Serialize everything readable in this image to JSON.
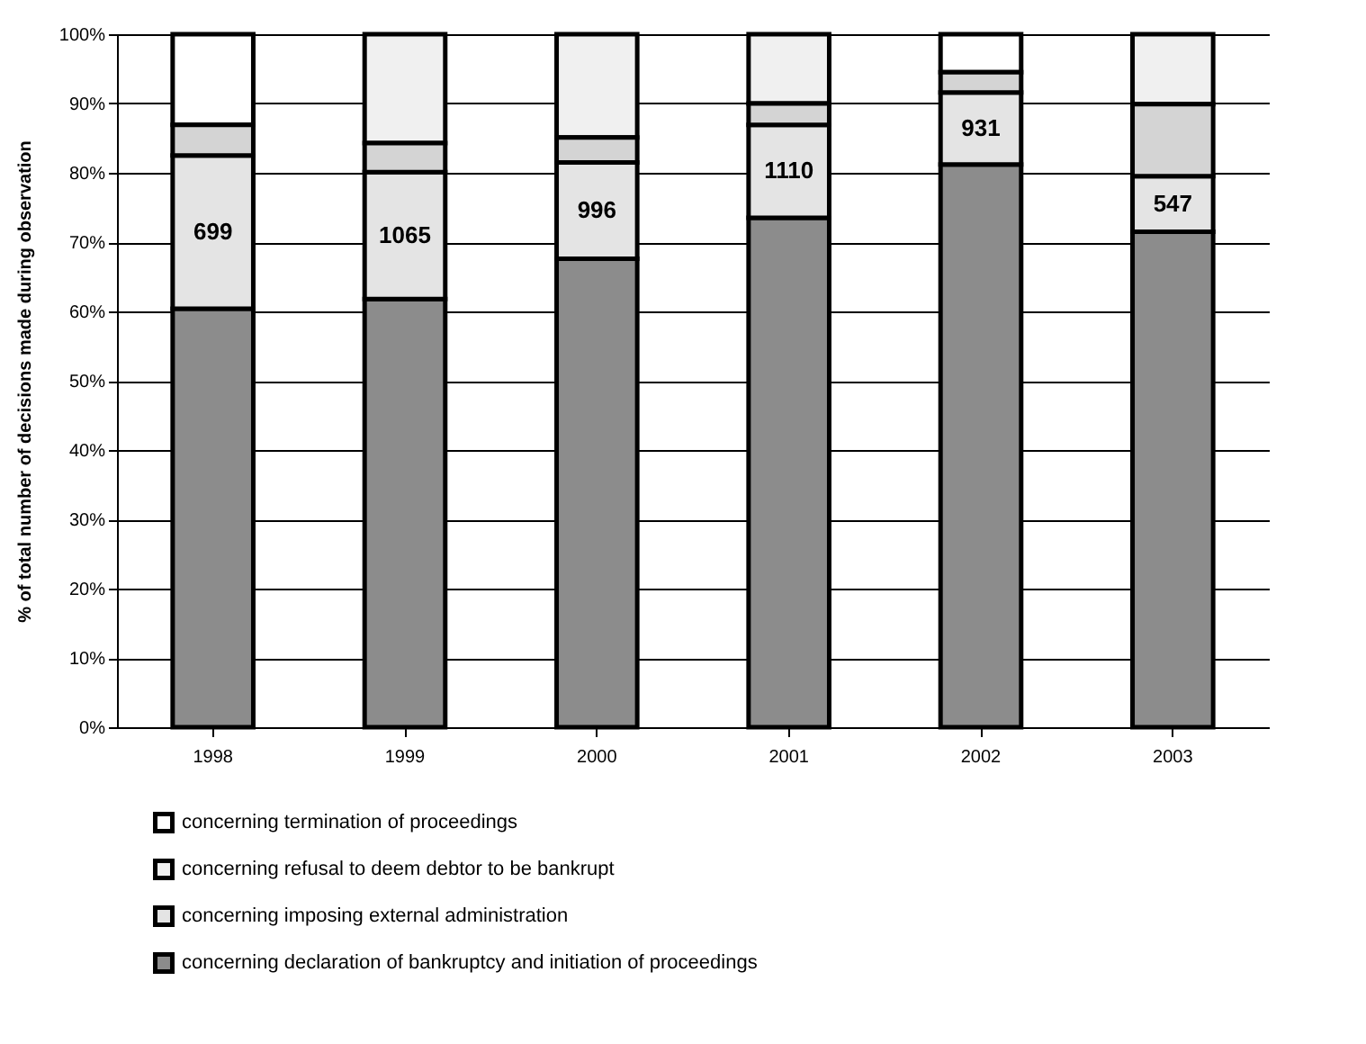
{
  "chart_data": {
    "type": "bar",
    "stacked": true,
    "ylabel": "% of total number of decisions made during observation",
    "categories": [
      "1998",
      "1999",
      "2000",
      "2001",
      "2002",
      "2003"
    ],
    "series": [
      {
        "name": "concerning declaration of bankruptcy and initiation of proceedings",
        "color": "#8c8c8c",
        "values": [
          60.4,
          61.8,
          67.6,
          73.5,
          81.2,
          71.5
        ]
      },
      {
        "name": "concerning imposing external administration",
        "color": "#e4e4e4",
        "values": [
          22.1,
          18.3,
          13.9,
          13.4,
          10.4,
          8.0
        ]
      },
      {
        "color": "#d4d4d4",
        "values": [
          4.4,
          4.2,
          3.6,
          3.1,
          2.9,
          10.4
        ]
      },
      {
        "name": "concerning refusal to deem debtor to be bankrupt",
        "color": "#f0f0f0",
        "values": [
          null,
          15.7,
          14.9,
          10.0,
          null,
          10.1
        ]
      },
      {
        "name": "concerning termination of proceedings",
        "color": "#ffffff",
        "values": [
          13.1,
          null,
          null,
          null,
          5.5,
          null
        ]
      }
    ],
    "annotations": [
      "699",
      "1065",
      "996",
      "1110",
      "931",
      "547"
    ],
    "ylim": [
      0,
      100
    ],
    "yticks": [
      {
        "value": 0,
        "label": "0%"
      },
      {
        "value": 10,
        "label": "10%"
      },
      {
        "value": 20,
        "label": "20%"
      },
      {
        "value": 30,
        "label": "30%"
      },
      {
        "value": 40,
        "label": "40%"
      },
      {
        "value": 50,
        "label": "50%"
      },
      {
        "value": 60,
        "label": "60%"
      },
      {
        "value": 70,
        "label": "70%"
      },
      {
        "value": 80,
        "label": "80%"
      },
      {
        "value": 90,
        "label": "90%"
      },
      {
        "value": 100,
        "label": "100%"
      }
    ],
    "grid": "y",
    "legend": "bottom"
  }
}
